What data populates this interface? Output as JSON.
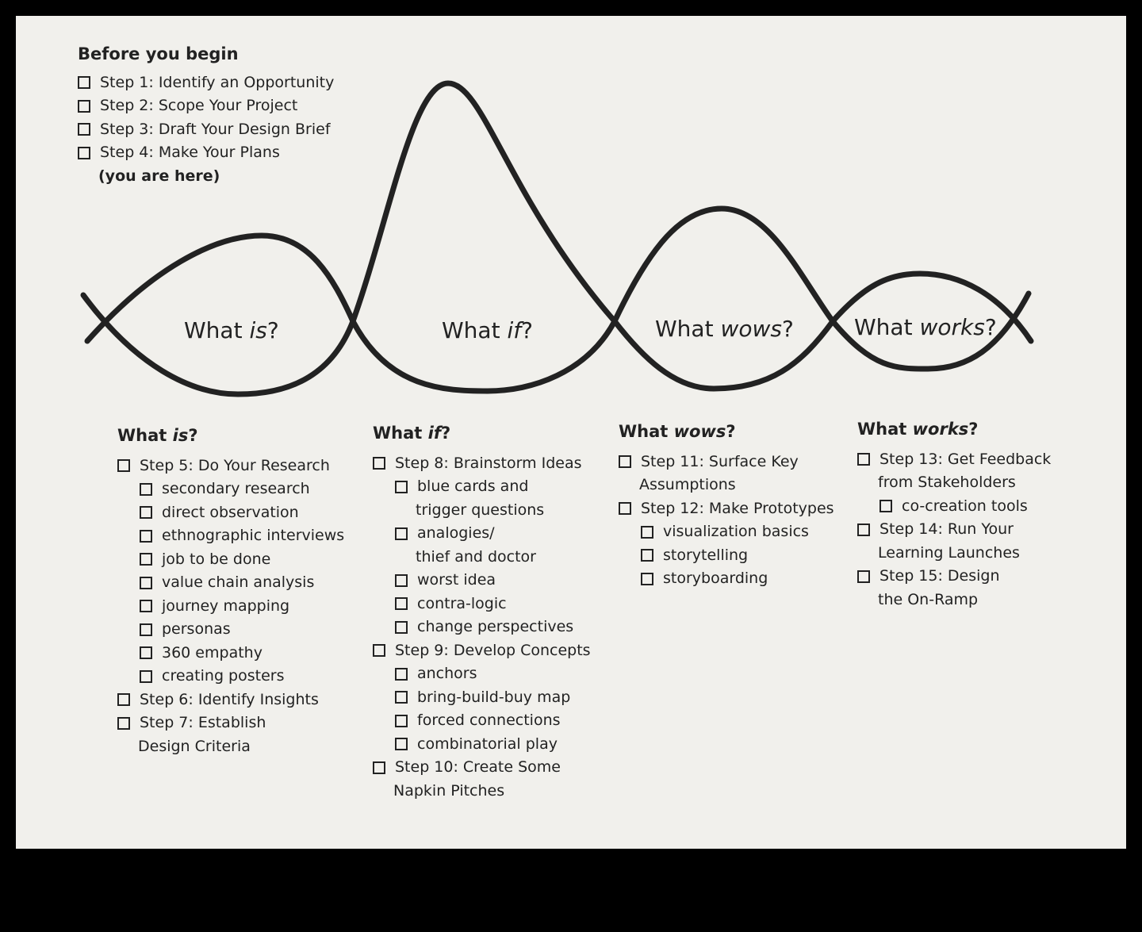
{
  "before": {
    "title": "Before you begin",
    "items": [
      "Step 1: Identify an Opportunity",
      "Step 2: Scope Your Project",
      "Step 3: Draft Your Design Brief",
      "Step 4: Make Your Plans"
    ],
    "note": "(you are here)"
  },
  "wave_labels": [
    {
      "pre": "What ",
      "em": "is",
      "post": "?"
    },
    {
      "pre": "What ",
      "em": "if",
      "post": "?"
    },
    {
      "pre": "What ",
      "em": "wows",
      "post": "?"
    },
    {
      "pre": "What ",
      "em": "works",
      "post": "?"
    }
  ],
  "columns": [
    {
      "title": {
        "pre": "What ",
        "em": "is",
        "post": "?"
      },
      "items": [
        {
          "text": "Step 5: Do Your Research",
          "level": 0
        },
        {
          "text": "secondary research",
          "level": 1
        },
        {
          "text": "direct observation",
          "level": 1
        },
        {
          "text": "ethnographic interviews",
          "level": 1
        },
        {
          "text": "job to be done",
          "level": 1
        },
        {
          "text": "value chain analysis",
          "level": 1
        },
        {
          "text": "journey mapping",
          "level": 1
        },
        {
          "text": "personas",
          "level": 1
        },
        {
          "text": "360 empathy",
          "level": 1
        },
        {
          "text": "creating posters",
          "level": 1
        },
        {
          "text": "Step 6: Identify Insights",
          "level": 0
        },
        {
          "text": "Step 7: Establish",
          "level": 0
        },
        {
          "text": "Design Criteria",
          "level": "c0"
        }
      ]
    },
    {
      "title": {
        "pre": "What ",
        "em": "if",
        "post": "?"
      },
      "items": [
        {
          "text": "Step 8: Brainstorm Ideas",
          "level": 0
        },
        {
          "text": "blue cards and",
          "level": 1
        },
        {
          "text": "trigger questions",
          "level": "c1"
        },
        {
          "text": "analogies/",
          "level": 1
        },
        {
          "text": "thief and doctor",
          "level": "c1"
        },
        {
          "text": "worst idea",
          "level": 1
        },
        {
          "text": "contra-logic",
          "level": 1
        },
        {
          "text": "change perspectives",
          "level": 1
        },
        {
          "text": "Step 9: Develop Concepts",
          "level": 0
        },
        {
          "text": "anchors",
          "level": 1
        },
        {
          "text": "bring-build-buy map",
          "level": 1
        },
        {
          "text": "forced connections",
          "level": 1
        },
        {
          "text": "combinatorial play",
          "level": 1
        },
        {
          "text": "Step 10: Create Some",
          "level": 0
        },
        {
          "text": "Napkin Pitches",
          "level": "c0"
        }
      ]
    },
    {
      "title": {
        "pre": "What ",
        "em": "wows",
        "post": "?"
      },
      "items": [
        {
          "text": "Step 11: Surface Key",
          "level": 0
        },
        {
          "text": "Assumptions",
          "level": "c0"
        },
        {
          "text": "Step 12: Make Prototypes",
          "level": 0
        },
        {
          "text": "visualization basics",
          "level": 1
        },
        {
          "text": "storytelling",
          "level": 1
        },
        {
          "text": "storyboarding",
          "level": 1
        }
      ]
    },
    {
      "title": {
        "pre": "What ",
        "em": "works",
        "post": "?"
      },
      "items": [
        {
          "text": "Step 13: Get Feedback",
          "level": 0
        },
        {
          "text": "from Stakeholders",
          "level": "c0"
        },
        {
          "text": "co-creation tools",
          "level": 1
        },
        {
          "text": "Step 14: Run Your",
          "level": 0
        },
        {
          "text": "Learning Launches",
          "level": "c0"
        },
        {
          "text": "Step 15: Design",
          "level": 0
        },
        {
          "text": "the On-Ramp",
          "level": "c0"
        }
      ]
    }
  ]
}
